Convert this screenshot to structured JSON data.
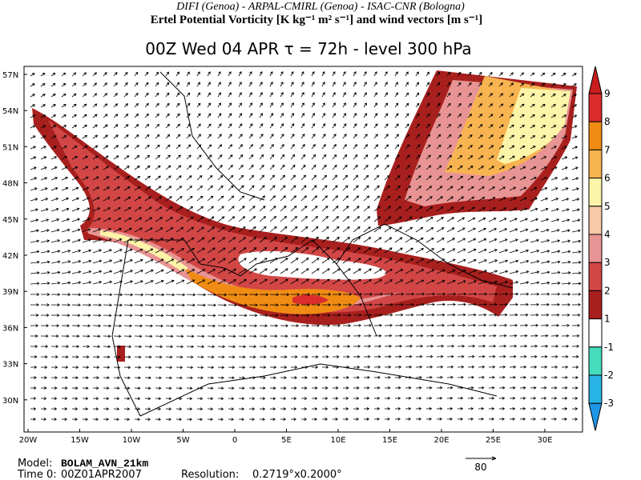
{
  "header": {
    "line1": "DIFI (Genoa)  -  ARPAL-CMIRL (Genoa)  -  ISAC-CNR (Bologna)",
    "line2": "Ertel Potential Vorticity [K kg⁻¹ m² s⁻¹] and wind vectors [m s⁻¹]"
  },
  "title": "00Z Wed 04 APR  τ = 72h  -  level 300 hPa",
  "map": {
    "lat_labels": [
      "57N",
      "54N",
      "51N",
      "48N",
      "45N",
      "42N",
      "39N",
      "36N",
      "33N",
      "30N"
    ],
    "lon_labels": [
      "20W",
      "15W",
      "10W",
      "5W",
      "0",
      "5E",
      "10E",
      "15E",
      "20E",
      "25E",
      "30E"
    ]
  },
  "colorbar": {
    "labels": [
      "9",
      "8",
      "7",
      "6",
      "5",
      "4",
      "3",
      "2",
      "1",
      "-1",
      "-2",
      "-3"
    ],
    "colors": [
      "#c81e1e",
      "#dc2c2c",
      "#f08c14",
      "#f8b450",
      "#fcf4a8",
      "#f8c8a8",
      "#e89494",
      "#d24646",
      "#a8201e",
      "#ffffff",
      "#46dcbe",
      "#28b4e6",
      "#1e96e6"
    ]
  },
  "reference_vector": "80",
  "footer": {
    "model_label": "Model:",
    "model": "BOLAM_AVN_21km",
    "time_label": "Time 0:",
    "time": "00Z01APR2007",
    "resolution_label": "Resolution:",
    "resolution": "0.2719°x0.2000°"
  }
}
